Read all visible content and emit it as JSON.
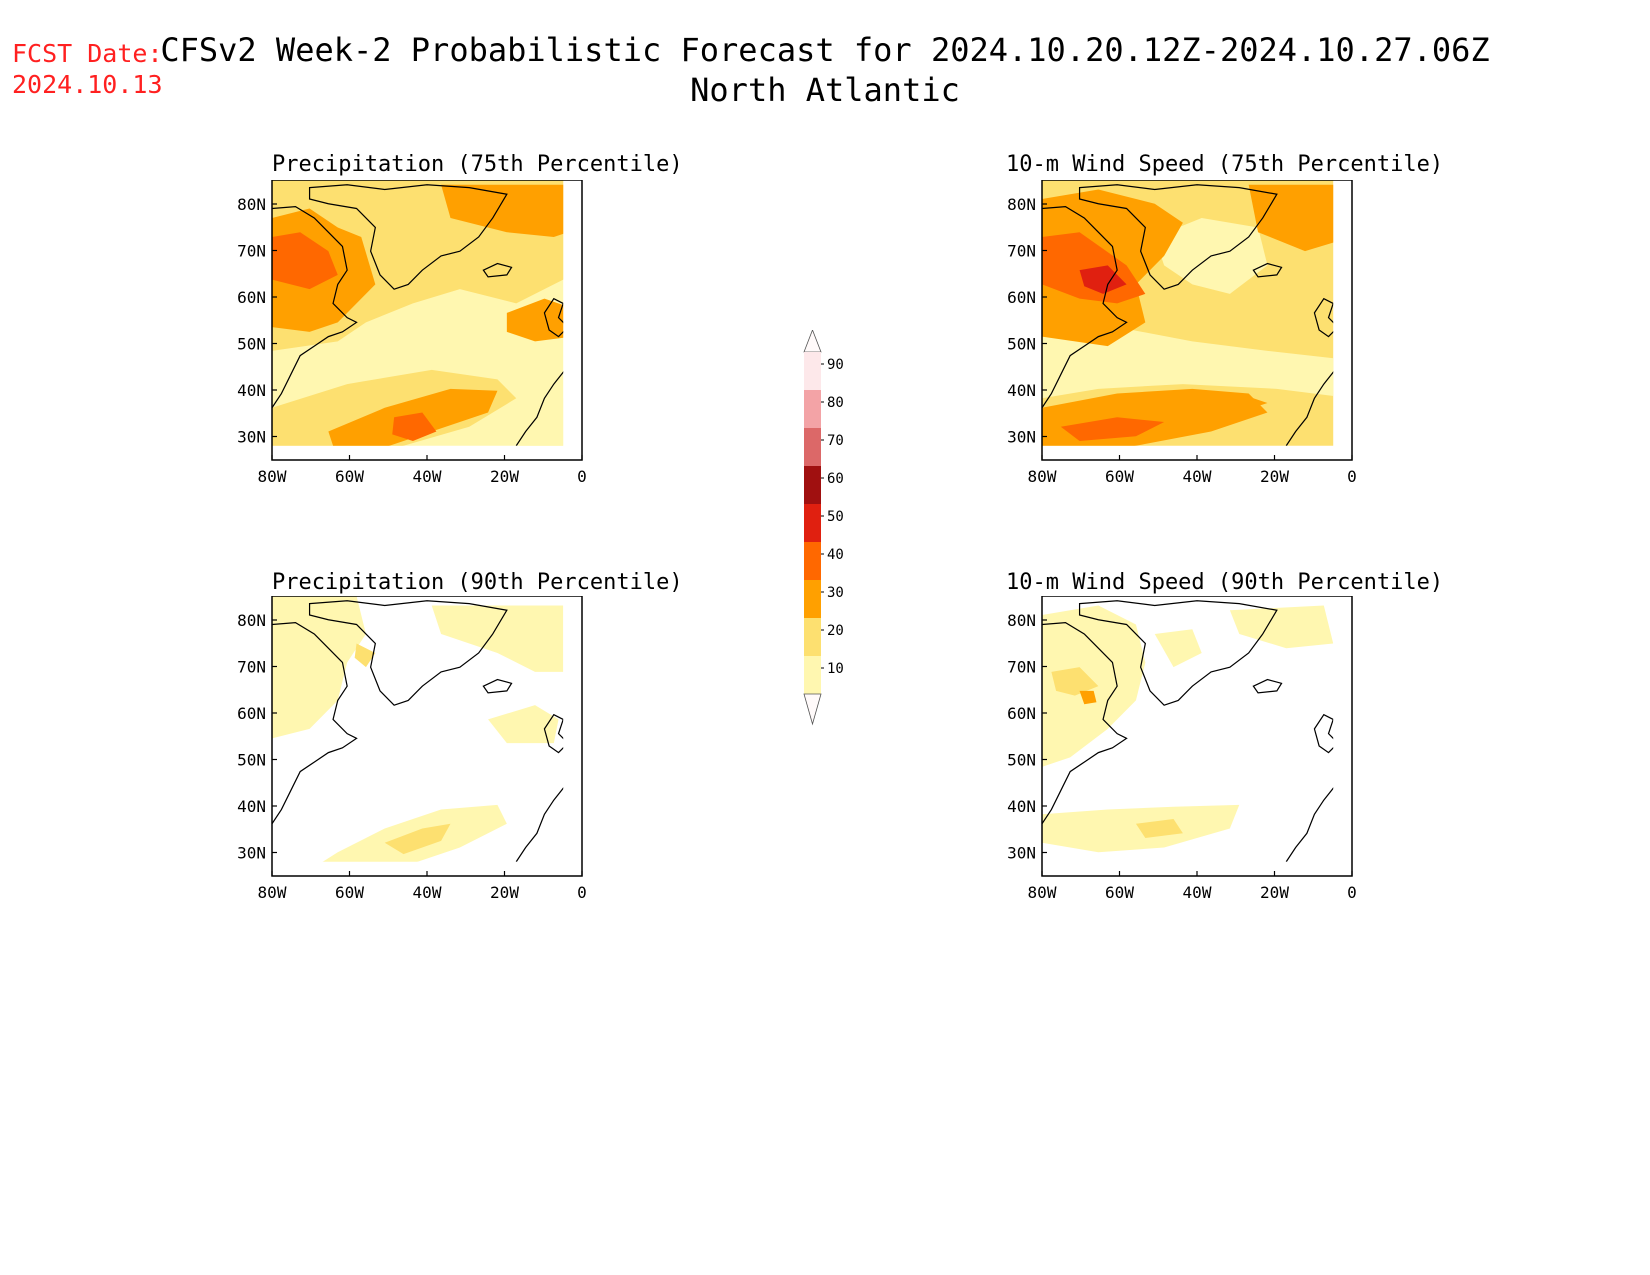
{
  "header": {
    "fcst_label": "FCST Date:",
    "fcst_date": "2024.10.13",
    "title": "CFSv2 Week-2 Probabilistic Forecast for 2024.10.20.12Z-2024.10.27.06Z",
    "subtitle": "North Atlantic"
  },
  "axes": {
    "lat_labels": [
      "80N",
      "70N",
      "60N",
      "50N",
      "40N",
      "30N"
    ],
    "lon_labels": [
      "80W",
      "60W",
      "40W",
      "20W",
      "0"
    ]
  },
  "panels": [
    {
      "id": "precip75",
      "title": "Precipitation (75th Percentile)"
    },
    {
      "id": "wind75",
      "title": "10-m Wind Speed (75th Percentile)"
    },
    {
      "id": "precip90",
      "title": "Precipitation (90th Percentile)"
    },
    {
      "id": "wind90",
      "title": "10-m Wind Speed (90th Percentile)"
    }
  ],
  "colorbar": {
    "labels": [
      "90",
      "80",
      "70",
      "60",
      "50",
      "40",
      "30",
      "20",
      "10"
    ],
    "colors": [
      "#fde8ea",
      "#f3a3a6",
      "#dc6868",
      "#a01010",
      "#e02010",
      "#ff6800",
      "#ffa000",
      "#fde070",
      "#fff7b0"
    ]
  },
  "palette": {
    "c10": "#fff7b0",
    "c20": "#fde070",
    "c30": "#ffa000",
    "c40": "#ff6800",
    "c50": "#e02010",
    "accent": "#ff2020"
  }
}
